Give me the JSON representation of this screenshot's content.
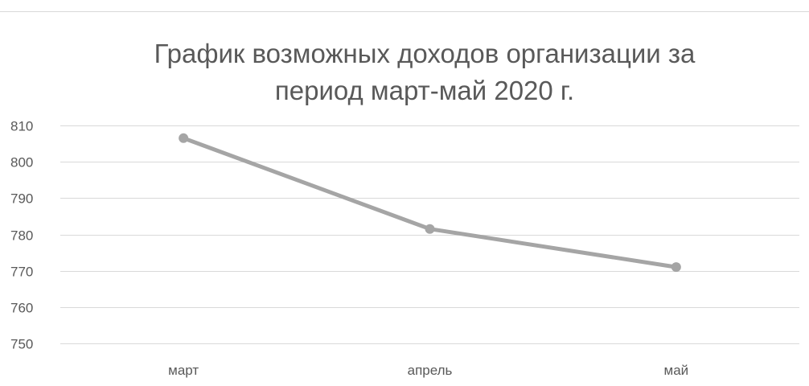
{
  "chart_data": {
    "type": "line",
    "title_lines": [
      "График возможных доходов организации за",
      "период март-май 2020 г."
    ],
    "categories": [
      "март",
      "апрель",
      "май"
    ],
    "series": [
      {
        "values": [
          806.5,
          781.5,
          771
        ]
      }
    ],
    "ylim": [
      750,
      810
    ],
    "yticks": [
      750,
      760,
      770,
      780,
      790,
      800,
      810
    ],
    "grid": true,
    "legend": "none",
    "colors": {
      "line": "#a5a5a5",
      "grid": "#d9d9d9",
      "axis": "#d9d9d9",
      "text": "#595959"
    }
  }
}
